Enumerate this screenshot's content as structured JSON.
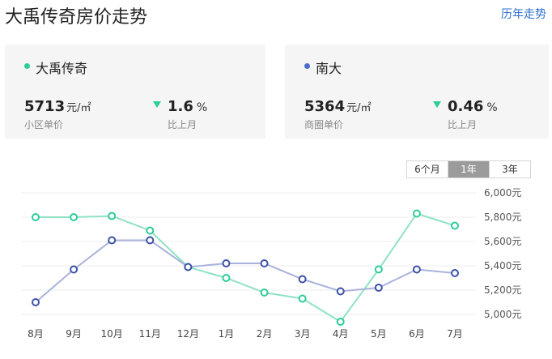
{
  "header": {
    "title": "大禹传奇房价走势",
    "history_link": "历年走势"
  },
  "cards": [
    {
      "name": "大禹传奇",
      "price": "5713",
      "price_unit": "元/㎡",
      "price_label": "小区单价",
      "change": "1.6",
      "change_unit": "%",
      "change_label": "比上月",
      "dot_color": "#2ecc9a"
    },
    {
      "name": "南大",
      "price": "5364",
      "price_unit": "元/㎡",
      "price_label": "商圈单价",
      "change": "0.46",
      "change_unit": "%",
      "change_label": "比上月",
      "dot_color": "#4a6cc8"
    }
  ],
  "range_tabs": {
    "options": [
      "6个月",
      "1年",
      "3年"
    ],
    "selected": "1年"
  },
  "chart_data": {
    "type": "line",
    "categories": [
      "8月",
      "9月",
      "10月",
      "11月",
      "12月",
      "1月",
      "2月",
      "3月",
      "4月",
      "5月",
      "6月",
      "7月"
    ],
    "series": [
      {
        "name": "大禹传奇",
        "color": "#2ecc9a",
        "line_color": "#8fe2c4",
        "values": [
          5800,
          5800,
          5810,
          5690,
          5390,
          5300,
          5180,
          5130,
          4940,
          5370,
          5830,
          5730
        ]
      },
      {
        "name": "南大",
        "color": "#3d52a8",
        "line_color": "#a9b2db",
        "values": [
          5100,
          5370,
          5610,
          5610,
          5390,
          5420,
          5420,
          5290,
          5190,
          5220,
          5370,
          5340
        ]
      }
    ],
    "y_ticks": [
      "6,000元",
      "5,800元",
      "5,600元",
      "5,400元",
      "5,200元",
      "5,000元"
    ],
    "ylim": [
      4900,
      6000
    ],
    "grid": true
  }
}
